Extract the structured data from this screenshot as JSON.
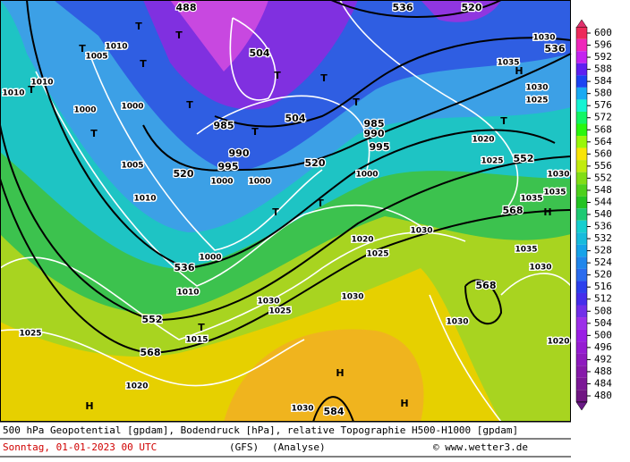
{
  "map": {
    "labels": [
      "488",
      "520",
      "536",
      "536",
      "504",
      "504",
      "520",
      "520",
      "552",
      "568",
      "536",
      "552",
      "568",
      "568",
      "584",
      "1030",
      "1035",
      "1030",
      "1025",
      "1020",
      "1025",
      "1030",
      "1035",
      "1035",
      "1030",
      "1020",
      "1025",
      "1030",
      "1030",
      "1025",
      "1030",
      "1030",
      "1035",
      "1020",
      "1025",
      "1020",
      "1030",
      "1015",
      "1010",
      "1000",
      "1000",
      "1000",
      "1005",
      "1010",
      "1000",
      "1000",
      "1005",
      "1010",
      "985",
      "990",
      "995",
      "985",
      "990",
      "995",
      "1000",
      "1010",
      "1010",
      "H",
      "H",
      "H",
      "H",
      "H",
      "T",
      "T",
      "T",
      "T",
      "T",
      "T",
      "T",
      "T",
      "T",
      "T",
      "T",
      "T",
      "T",
      "T",
      "T"
    ]
  },
  "legend": {
    "levels": [
      600,
      596,
      592,
      588,
      584,
      580,
      576,
      572,
      568,
      564,
      560,
      556,
      552,
      548,
      544,
      540,
      536,
      532,
      528,
      524,
      520,
      516,
      512,
      508,
      504,
      500,
      496,
      492,
      488,
      484,
      480
    ]
  },
  "footer": {
    "description": "500 hPa Geopotential [gpdam], Bodendruck [hPa], relative Topographie H500-H1000 [gpdam]",
    "date": "Sonntag, 01-01-2023  00 UTC",
    "model": "(GFS)",
    "run": "(Analyse)",
    "copyright": "© www.wetter3.de"
  }
}
